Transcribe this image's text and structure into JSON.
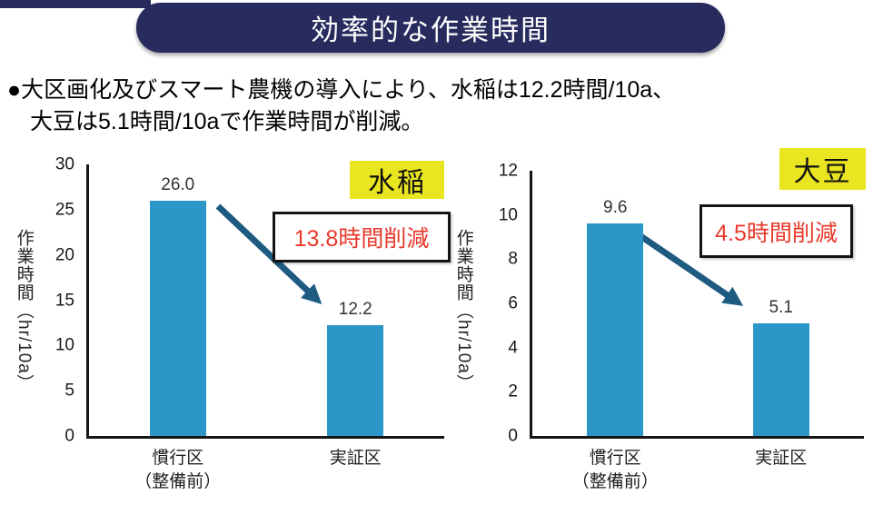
{
  "header": {
    "title": "効率的な作業時間"
  },
  "summary": {
    "line1": "●大区画化及びスマート農機の導入により、水稲は12.2時間/10a、",
    "line2": "大豆は5.1時間/10aで作業時間が削減。"
  },
  "colors": {
    "navy": "#272B5D",
    "bar_blue": "#2D96C8",
    "arrow_blue": "#1D5B80",
    "highlight_yellow": "#E9E520",
    "alert_red": "#E8392B"
  },
  "chart_data": [
    {
      "type": "bar",
      "title_badge": "水稲",
      "categories": [
        "慣行区\n（整備前）",
        "実証区"
      ],
      "values": [
        26.0,
        12.2
      ],
      "value_labels": [
        "26.0",
        "12.2"
      ],
      "ylabel": "作業時間（hr/10a）",
      "ylim": [
        0,
        30
      ],
      "yticks": [
        30,
        25,
        20,
        15,
        10,
        5,
        0
      ],
      "annotation": "13.8時間削減",
      "bar_color": "#2D96C8",
      "grid": false,
      "legend": "none"
    },
    {
      "type": "bar",
      "title_badge": "大豆",
      "categories": [
        "慣行区\n（整備前）",
        "実証区"
      ],
      "values": [
        9.6,
        5.1
      ],
      "value_labels": [
        "9.6",
        "5.1"
      ],
      "ylabel": "作業時間（hr/10a）",
      "ylim": [
        0,
        12
      ],
      "yticks": [
        12,
        10,
        8,
        6,
        4,
        2,
        0
      ],
      "annotation": "4.5時間削減",
      "bar_color": "#2D96C8",
      "grid": false,
      "legend": "none"
    }
  ]
}
